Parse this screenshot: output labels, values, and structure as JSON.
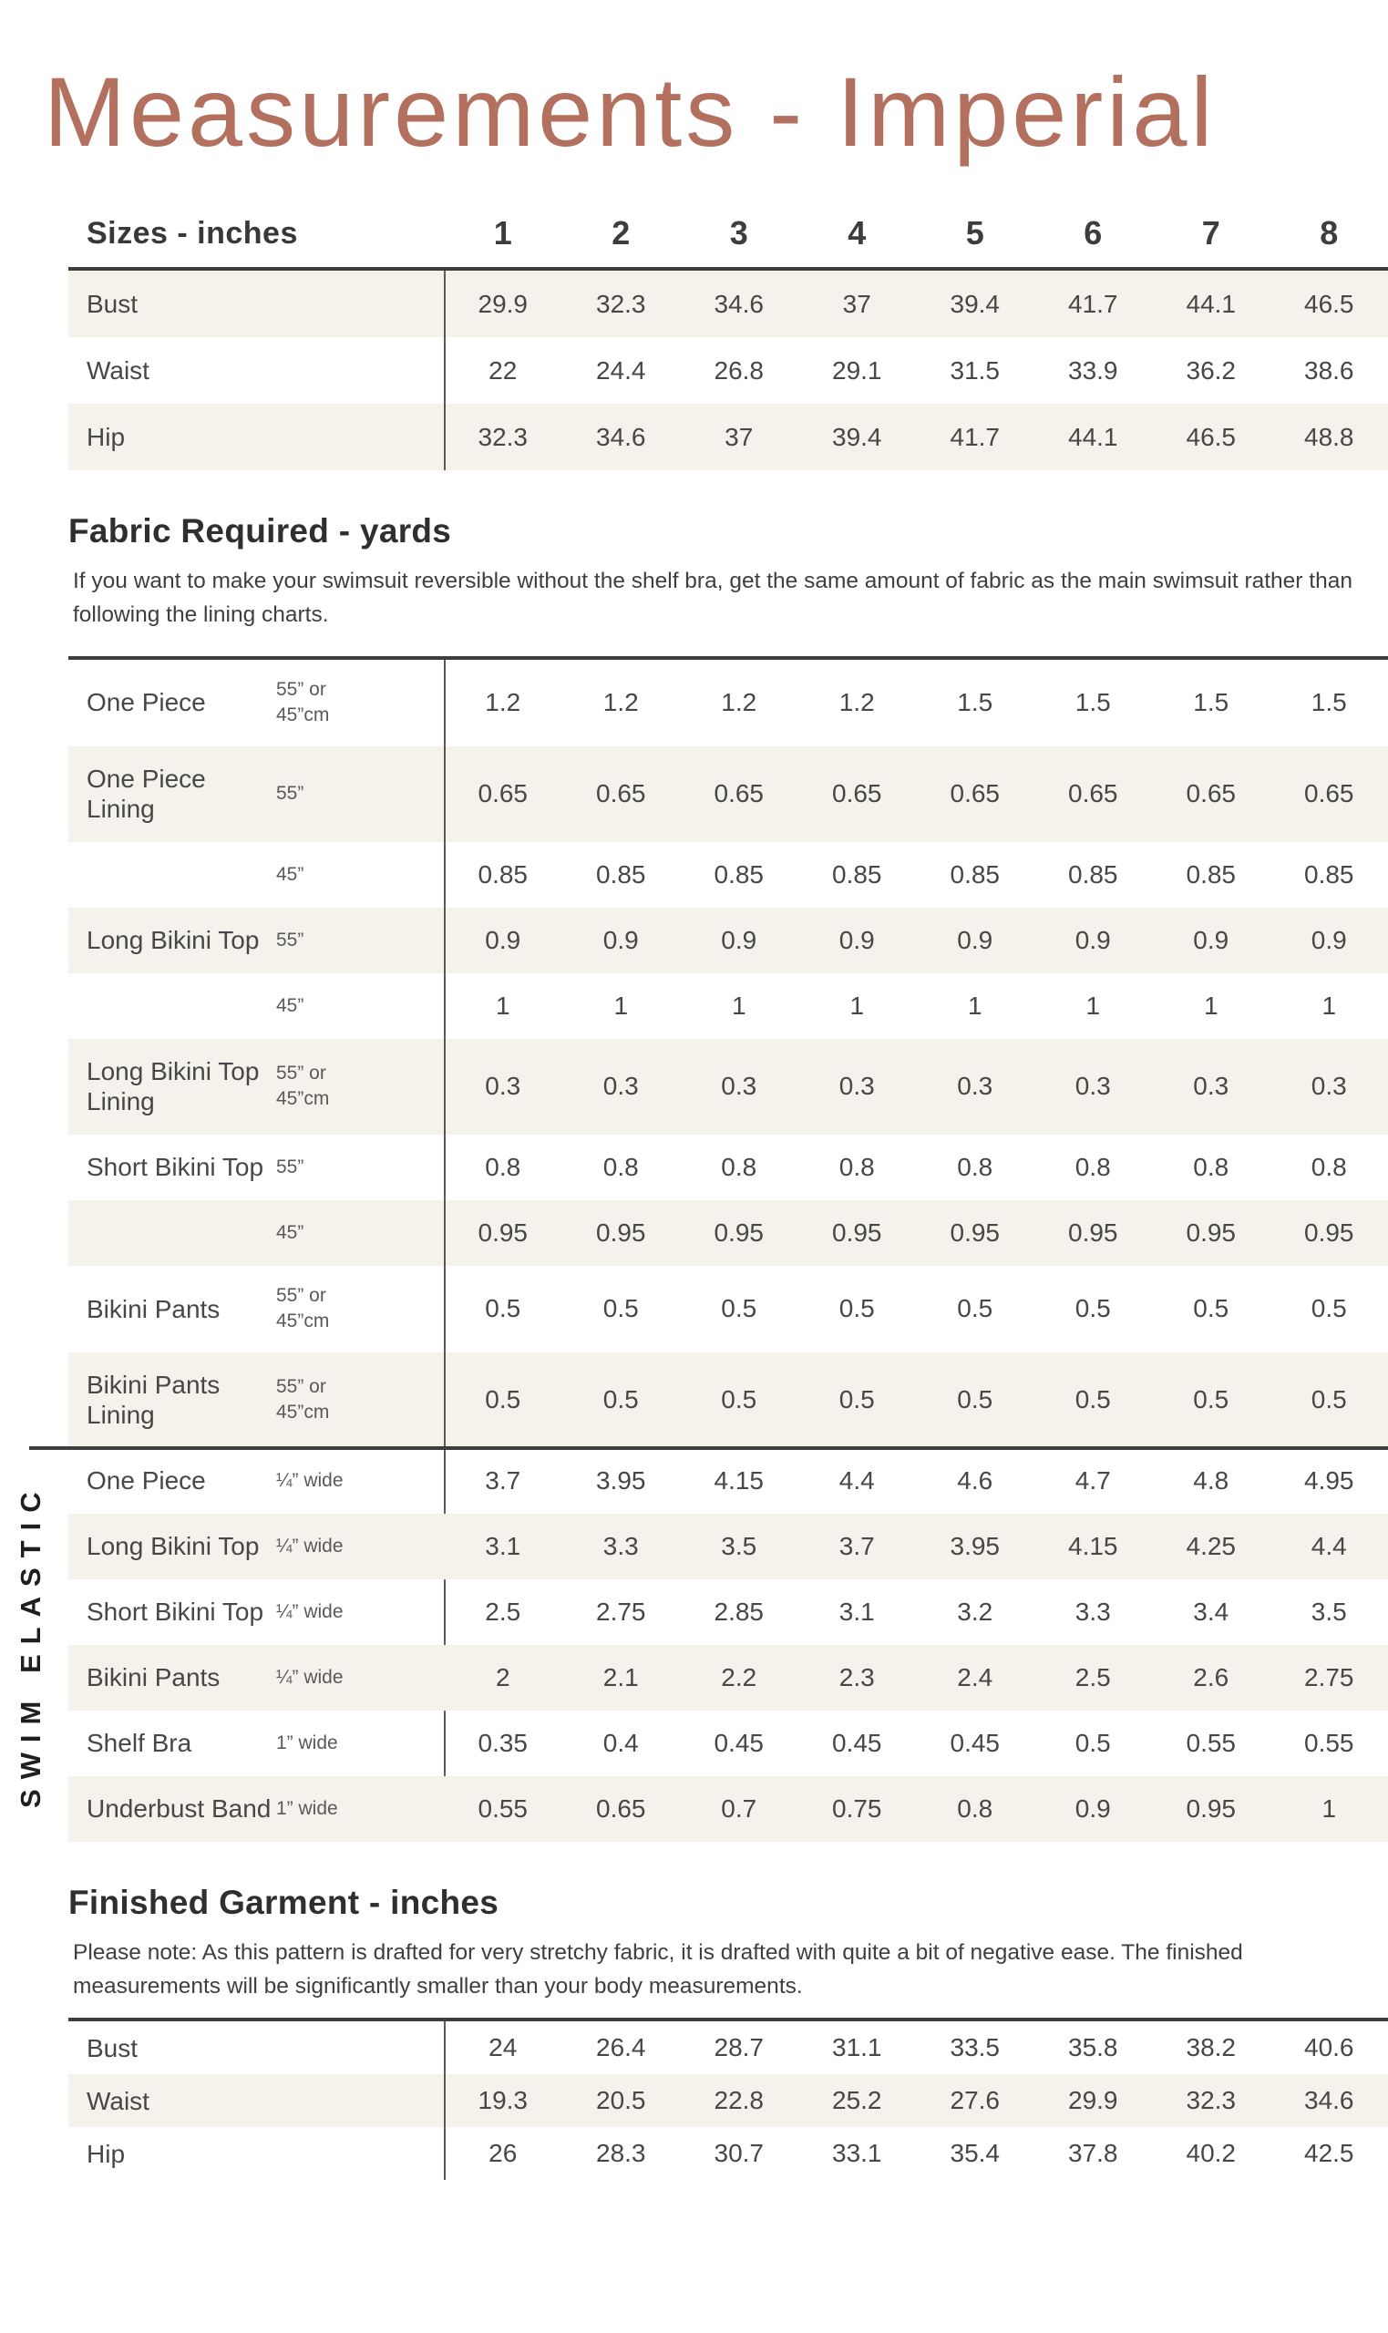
{
  "page": {
    "title": "Measurements - Imperial"
  },
  "colors": {
    "accent": "#b4705f",
    "shaded_row": "#f5f2ec",
    "rule": "#3e3e3e",
    "text": "#474747"
  },
  "sizes_table": {
    "header_label": "Sizes - inches",
    "sizes": [
      "1",
      "2",
      "3",
      "4",
      "5",
      "6",
      "7",
      "8"
    ],
    "rows": [
      {
        "label": "Bust",
        "values": [
          "29.9",
          "32.3",
          "34.6",
          "37",
          "39.4",
          "41.7",
          "44.1",
          "46.5"
        ]
      },
      {
        "label": "Waist",
        "values": [
          "22",
          "24.4",
          "26.8",
          "29.1",
          "31.5",
          "33.9",
          "36.2",
          "38.6"
        ]
      },
      {
        "label": "Hip",
        "values": [
          "32.3",
          "34.6",
          "37",
          "39.4",
          "41.7",
          "44.1",
          "46.5",
          "48.8"
        ]
      }
    ]
  },
  "fabric_section": {
    "heading": "Fabric Required - yards",
    "note": "If you want to make your swimsuit reversible without the shelf bra, get the same amount of fabric as the main swimsuit rather than following the lining charts.",
    "rows": [
      {
        "label": "One Piece",
        "spec": "55” or 45”cm",
        "values": [
          "1.2",
          "1.2",
          "1.2",
          "1.2",
          "1.5",
          "1.5",
          "1.5",
          "1.5"
        ]
      },
      {
        "label": "One Piece Lining",
        "spec": "55”",
        "values": [
          "0.65",
          "0.65",
          "0.65",
          "0.65",
          "0.65",
          "0.65",
          "0.65",
          "0.65"
        ]
      },
      {
        "label": "",
        "spec": "45”",
        "values": [
          "0.85",
          "0.85",
          "0.85",
          "0.85",
          "0.85",
          "0.85",
          "0.85",
          "0.85"
        ]
      },
      {
        "label": "Long Bikini Top",
        "spec": "55”",
        "values": [
          "0.9",
          "0.9",
          "0.9",
          "0.9",
          "0.9",
          "0.9",
          "0.9",
          "0.9"
        ]
      },
      {
        "label": "",
        "spec": "45”",
        "values": [
          "1",
          "1",
          "1",
          "1",
          "1",
          "1",
          "1",
          "1"
        ]
      },
      {
        "label": "Long Bikini Top Lining",
        "spec": "55” or 45”cm",
        "values": [
          "0.3",
          "0.3",
          "0.3",
          "0.3",
          "0.3",
          "0.3",
          "0.3",
          "0.3"
        ]
      },
      {
        "label": "Short Bikini Top",
        "spec": "55”",
        "values": [
          "0.8",
          "0.8",
          "0.8",
          "0.8",
          "0.8",
          "0.8",
          "0.8",
          "0.8"
        ]
      },
      {
        "label": "",
        "spec": "45”",
        "values": [
          "0.95",
          "0.95",
          "0.95",
          "0.95",
          "0.95",
          "0.95",
          "0.95",
          "0.95"
        ]
      },
      {
        "label": "Bikini Pants",
        "spec": "55” or 45”cm",
        "values": [
          "0.5",
          "0.5",
          "0.5",
          "0.5",
          "0.5",
          "0.5",
          "0.5",
          "0.5"
        ]
      },
      {
        "label": "Bikini Pants Lining",
        "spec": "55” or 45”cm",
        "values": [
          "0.5",
          "0.5",
          "0.5",
          "0.5",
          "0.5",
          "0.5",
          "0.5",
          "0.5"
        ]
      }
    ]
  },
  "elastic_section": {
    "side_label": "SWIM ELASTIC",
    "rows": [
      {
        "label": "One Piece",
        "spec": "¼” wide",
        "values": [
          "3.7",
          "3.95",
          "4.15",
          "4.4",
          "4.6",
          "4.7",
          "4.8",
          "4.95"
        ]
      },
      {
        "label": "Long Bikini Top",
        "spec": "¼” wide",
        "values": [
          "3.1",
          "3.3",
          "3.5",
          "3.7",
          "3.95",
          "4.15",
          "4.25",
          "4.4"
        ]
      },
      {
        "label": "Short Bikini Top",
        "spec": "¼” wide",
        "values": [
          "2.5",
          "2.75",
          "2.85",
          "3.1",
          "3.2",
          "3.3",
          "3.4",
          "3.5"
        ]
      },
      {
        "label": "Bikini Pants",
        "spec": "¼” wide",
        "values": [
          "2",
          "2.1",
          "2.2",
          "2.3",
          "2.4",
          "2.5",
          "2.6",
          "2.75"
        ]
      },
      {
        "label": "Shelf Bra",
        "spec": "1” wide",
        "values": [
          "0.35",
          "0.4",
          "0.45",
          "0.45",
          "0.45",
          "0.5",
          "0.55",
          "0.55"
        ]
      },
      {
        "label": "Underbust Band",
        "spec": "1” wide",
        "values": [
          "0.55",
          "0.65",
          "0.7",
          "0.75",
          "0.8",
          "0.9",
          "0.95",
          "1"
        ]
      }
    ]
  },
  "finished_section": {
    "heading": "Finished Garment - inches",
    "note": "Please note: As this pattern is drafted for very stretchy fabric, it is drafted with quite a bit of negative ease. The finished measurements will be significantly smaller than your body measurements.",
    "rows": [
      {
        "label": "Bust",
        "values": [
          "24",
          "26.4",
          "28.7",
          "31.1",
          "33.5",
          "35.8",
          "38.2",
          "40.6"
        ]
      },
      {
        "label": "Waist",
        "values": [
          "19.3",
          "20.5",
          "22.8",
          "25.2",
          "27.6",
          "29.9",
          "32.3",
          "34.6"
        ]
      },
      {
        "label": "Hip",
        "values": [
          "26",
          "28.3",
          "30.7",
          "33.1",
          "35.4",
          "37.8",
          "40.2",
          "42.5"
        ]
      }
    ]
  }
}
